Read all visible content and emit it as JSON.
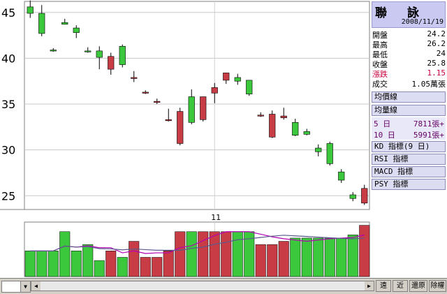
{
  "stock": {
    "name": "聯　詠",
    "date": "2008/11/19",
    "quotes": [
      {
        "label": "開盤",
        "value": "24.2"
      },
      {
        "label": "最高",
        "value": "26.2"
      },
      {
        "label": "最低",
        "value": "24"
      },
      {
        "label": "收盤",
        "value": "25.8"
      },
      {
        "label": "漲跌",
        "value": "1.15"
      },
      {
        "label": "成交",
        "value": "1.05萬張"
      }
    ]
  },
  "panel_buttons": {
    "avg_price": "均價線",
    "avg_volume": "均量線",
    "kd": "KD 指標(9 日)",
    "rsi": "RSI 指標",
    "macd": "MACD 指標",
    "psy": "PSY 指標"
  },
  "volume_ma": [
    {
      "label": "5 日",
      "value": "7811張+"
    },
    {
      "label": "10 日",
      "value": "5991張+"
    }
  ],
  "nav_buttons": {
    "far": "遠",
    "near": "近",
    "restore": "還原",
    "clear": "除權"
  },
  "colors": {
    "up": "#c83c46",
    "down": "#3cc83c",
    "ma5": "#b400b4",
    "ma10": "#5a5a8c",
    "panel": "#c9c9f2"
  },
  "chart_data": {
    "type": "candlestick",
    "x_label_month": "11",
    "y_ticks": [
      45,
      40,
      35,
      30,
      25
    ],
    "ylim": [
      23.5,
      46.2
    ],
    "candles": [
      {
        "open": 45.6,
        "high": 46.3,
        "low": 44.4,
        "close": 44.9
      },
      {
        "open": 44.9,
        "high": 45.8,
        "low": 42.4,
        "close": 42.7
      },
      {
        "open": 40.9,
        "high": 41.1,
        "low": 40.7,
        "close": 40.8
      },
      {
        "open": 43.9,
        "high": 44.3,
        "low": 43.7,
        "close": 43.7
      },
      {
        "open": 43.3,
        "high": 43.6,
        "low": 42.2,
        "close": 42.8
      },
      {
        "open": 40.8,
        "high": 41.2,
        "low": 40.6,
        "close": 40.7
      },
      {
        "open": 40.8,
        "high": 41.3,
        "low": 38.8,
        "close": 40.1
      },
      {
        "open": 38.8,
        "high": 40.6,
        "low": 38.2,
        "close": 40.2
      },
      {
        "open": 41.3,
        "high": 41.5,
        "low": 39.0,
        "close": 39.3
      },
      {
        "open": 37.9,
        "high": 38.6,
        "low": 37.4,
        "close": 37.9
      },
      {
        "open": 36.3,
        "high": 36.5,
        "low": 36.1,
        "close": 36.3
      },
      {
        "open": 35.2,
        "high": 35.6,
        "low": 35.0,
        "close": 35.3
      },
      {
        "open": 33.2,
        "high": 34.5,
        "low": 33.1,
        "close": 33.3
      },
      {
        "open": 30.7,
        "high": 34.6,
        "low": 30.5,
        "close": 34.2
      },
      {
        "open": 35.8,
        "high": 36.6,
        "low": 32.8,
        "close": 33.0
      },
      {
        "open": 33.3,
        "high": 35.8,
        "low": 33.1,
        "close": 35.8
      },
      {
        "open": 36.2,
        "high": 37.3,
        "low": 35.1,
        "close": 36.8
      },
      {
        "open": 37.6,
        "high": 38.4,
        "low": 37.2,
        "close": 38.4
      },
      {
        "open": 37.9,
        "high": 38.3,
        "low": 37.1,
        "close": 37.5
      },
      {
        "open": 37.6,
        "high": 37.6,
        "low": 35.9,
        "close": 36.1
      },
      {
        "open": 33.8,
        "high": 34.1,
        "low": 33.6,
        "close": 33.8
      },
      {
        "open": 31.4,
        "high": 34.3,
        "low": 31.3,
        "close": 33.9
      },
      {
        "open": 33.5,
        "high": 34.6,
        "low": 33.3,
        "close": 33.7
      },
      {
        "open": 33.0,
        "high": 33.4,
        "low": 31.5,
        "close": 31.6
      },
      {
        "open": 32.0,
        "high": 32.3,
        "low": 31.6,
        "close": 31.7
      },
      {
        "open": 30.2,
        "high": 30.6,
        "low": 29.3,
        "close": 29.8
      },
      {
        "open": 30.7,
        "high": 30.9,
        "low": 28.3,
        "close": 28.5
      },
      {
        "open": 27.6,
        "high": 27.9,
        "low": 26.4,
        "close": 26.7
      },
      {
        "open": 25.1,
        "high": 25.4,
        "low": 24.4,
        "close": 24.7
      },
      {
        "open": 24.2,
        "high": 26.2,
        "low": 24.0,
        "close": 25.8
      }
    ],
    "volume": [
      8,
      8,
      8,
      14,
      8,
      10,
      5,
      8,
      6,
      11,
      6,
      6,
      8,
      14,
      14,
      14,
      14,
      14,
      14,
      14,
      10,
      10,
      11,
      12,
      12,
      12,
      12,
      12,
      13,
      16
    ],
    "volume_ylim": [
      0,
      17
    ]
  }
}
